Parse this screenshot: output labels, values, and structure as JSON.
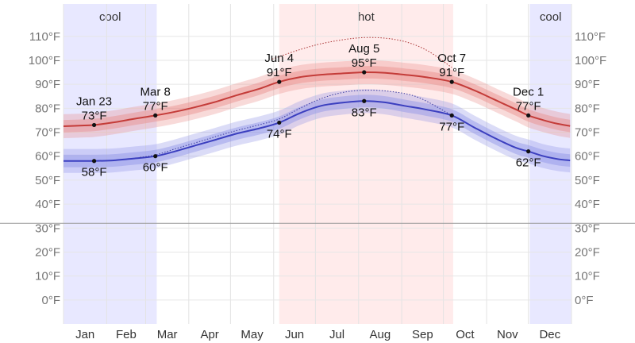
{
  "chart_data": {
    "type": "line",
    "y_unit": "°F",
    "ylim": [
      -10,
      120
    ],
    "y_ticks": [
      0,
      10,
      20,
      30,
      40,
      50,
      60,
      70,
      80,
      90,
      100,
      110
    ],
    "y_tick_labels": [
      "0°F",
      "10°F",
      "20°F",
      "30°F",
      "40°F",
      "50°F",
      "60°F",
      "70°F",
      "80°F",
      "90°F",
      "100°F",
      "110°F"
    ],
    "freezing_line": 32,
    "grid": true,
    "months": [
      "Jan",
      "Feb",
      "Mar",
      "Apr",
      "May",
      "Jun",
      "Jul",
      "Aug",
      "Sep",
      "Oct",
      "Nov",
      "Dec"
    ],
    "seasons": [
      {
        "label": "cool",
        "start_day": 0,
        "end_day": 67,
        "color": "#e8e8ff"
      },
      {
        "label": "hot",
        "start_day": 155,
        "end_day": 280,
        "color": "#ffebeb"
      },
      {
        "label": "cool",
        "start_day": 335,
        "end_day": 365,
        "color": "#e8e8ff"
      }
    ],
    "series": [
      {
        "key": "high",
        "color": "#c43c39",
        "band_color": "#e88b8a",
        "day": [
          0,
          15,
          22,
          35,
          50,
          66,
          80,
          95,
          110,
          125,
          140,
          155,
          170,
          185,
          200,
          216,
          230,
          245,
          260,
          279,
          295,
          310,
          325,
          334,
          345,
          355,
          364
        ],
        "values": [
          72.5,
          72.8,
          73.0,
          74.0,
          75.5,
          77.0,
          78.5,
          80.5,
          82.8,
          85.5,
          88.0,
          91.0,
          93.0,
          94.0,
          94.5,
          95.0,
          94.8,
          94.0,
          93.0,
          91.0,
          87.5,
          83.5,
          79.5,
          77.0,
          75.0,
          73.5,
          72.6
        ],
        "percentile_max": [
          [
            150,
            100.5
          ],
          [
            170,
            104.5
          ],
          [
            190,
            107.5
          ],
          [
            216,
            109.5
          ],
          [
            240,
            108.5
          ],
          [
            260,
            104.5
          ],
          [
            279,
            97.0
          ]
        ]
      },
      {
        "key": "low",
        "color": "#3b3fbf",
        "band_color": "#8f92e6",
        "day": [
          0,
          15,
          22,
          35,
          50,
          66,
          80,
          95,
          110,
          125,
          140,
          155,
          170,
          185,
          200,
          216,
          230,
          245,
          260,
          279,
          295,
          310,
          325,
          334,
          345,
          355,
          364
        ],
        "values": [
          58.0,
          58.0,
          58.0,
          58.2,
          59.0,
          60.0,
          62.0,
          64.5,
          67.0,
          69.5,
          71.5,
          74.0,
          78.0,
          81.0,
          82.3,
          83.0,
          82.5,
          81.0,
          79.5,
          77.0,
          72.0,
          67.5,
          63.5,
          62.0,
          60.0,
          58.8,
          58.2
        ],
        "percentile_max": [
          [
            55,
            59.5
          ],
          [
            66,
            60.5
          ],
          [
            80,
            63.0
          ],
          [
            100,
            66.5
          ],
          [
            120,
            70.0
          ],
          [
            140,
            73.0
          ],
          [
            155,
            75.5
          ],
          [
            170,
            80.0
          ],
          [
            185,
            84.0
          ],
          [
            200,
            86.5
          ],
          [
            216,
            87.5
          ],
          [
            235,
            87.0
          ],
          [
            255,
            84.5
          ],
          [
            279,
            77.0
          ]
        ]
      }
    ],
    "annotations": [
      {
        "day": 22,
        "value": 73,
        "date": "Jan 23",
        "value_label": "73°F",
        "series": "high",
        "placement": "above"
      },
      {
        "day": 22,
        "value": 58,
        "date": "",
        "value_label": "58°F",
        "series": "low",
        "placement": "below"
      },
      {
        "day": 66,
        "value": 77,
        "date": "Mar 8",
        "value_label": "77°F",
        "series": "high",
        "placement": "above"
      },
      {
        "day": 66,
        "value": 60,
        "date": "",
        "value_label": "60°F",
        "series": "low",
        "placement": "below"
      },
      {
        "day": 155,
        "value": 91,
        "date": "Jun 4",
        "value_label": "91°F",
        "series": "high",
        "placement": "above"
      },
      {
        "day": 155,
        "value": 74,
        "date": "",
        "value_label": "74°F",
        "series": "low",
        "placement": "below"
      },
      {
        "day": 216,
        "value": 95,
        "date": "Aug 5",
        "value_label": "95°F",
        "series": "high",
        "placement": "above"
      },
      {
        "day": 216,
        "value": 83,
        "date": "",
        "value_label": "83°F",
        "series": "low",
        "placement": "below"
      },
      {
        "day": 279,
        "value": 91,
        "date": "Oct 7",
        "value_label": "91°F",
        "series": "high",
        "placement": "above"
      },
      {
        "day": 279,
        "value": 77,
        "date": "",
        "value_label": "77°F",
        "series": "low",
        "placement": "below"
      },
      {
        "day": 334,
        "value": 77,
        "date": "Dec 1",
        "value_label": "77°F",
        "series": "high",
        "placement": "above"
      },
      {
        "day": 334,
        "value": 62,
        "date": "",
        "value_label": "62°F",
        "series": "low",
        "placement": "below"
      }
    ]
  }
}
